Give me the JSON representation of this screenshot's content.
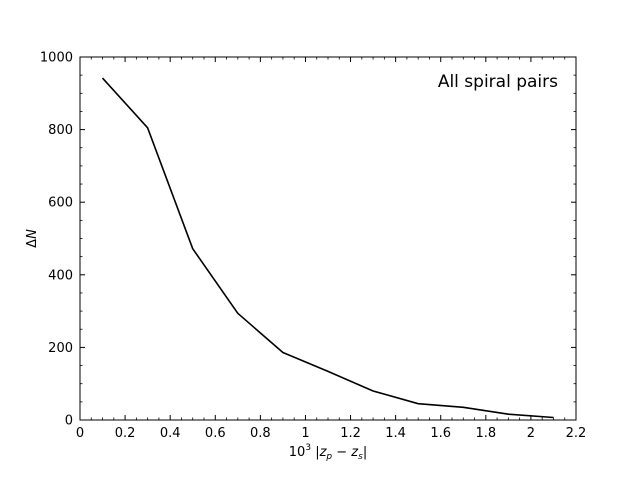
{
  "chart_data": {
    "type": "line",
    "title": "",
    "annotation": "All spiral pairs",
    "xlabel_prefix": "10",
    "xlabel_exponent": "3",
    "xlabel_text": "|z_p − z_s|",
    "ylabel": "ΔN",
    "xlim": [
      0,
      2.2
    ],
    "ylim": [
      0,
      1000
    ],
    "grid": false,
    "legend": "none",
    "x_ticks": [
      0,
      0.2,
      0.4,
      0.6,
      0.8,
      1,
      1.2,
      1.4,
      1.6,
      1.8,
      2,
      2.2
    ],
    "x_tick_labels": [
      "0",
      "0.2",
      "0.4",
      "0.6",
      "0.8",
      "1",
      "1.2",
      "1.4",
      "1.6",
      "1.8",
      "2",
      "2.2"
    ],
    "y_ticks": [
      0,
      200,
      400,
      600,
      800,
      1000
    ],
    "y_tick_labels": [
      "0",
      "200",
      "400",
      "600",
      "800",
      "1000"
    ],
    "series": [
      {
        "color": "#000000",
        "x": [
          0.1,
          0.3,
          0.5,
          0.7,
          0.9,
          1.1,
          1.3,
          1.5,
          1.7,
          1.9,
          2.1
        ],
        "y": [
          942,
          805,
          472,
          294,
          186,
          134,
          80,
          45,
          35,
          16,
          7
        ]
      }
    ]
  }
}
